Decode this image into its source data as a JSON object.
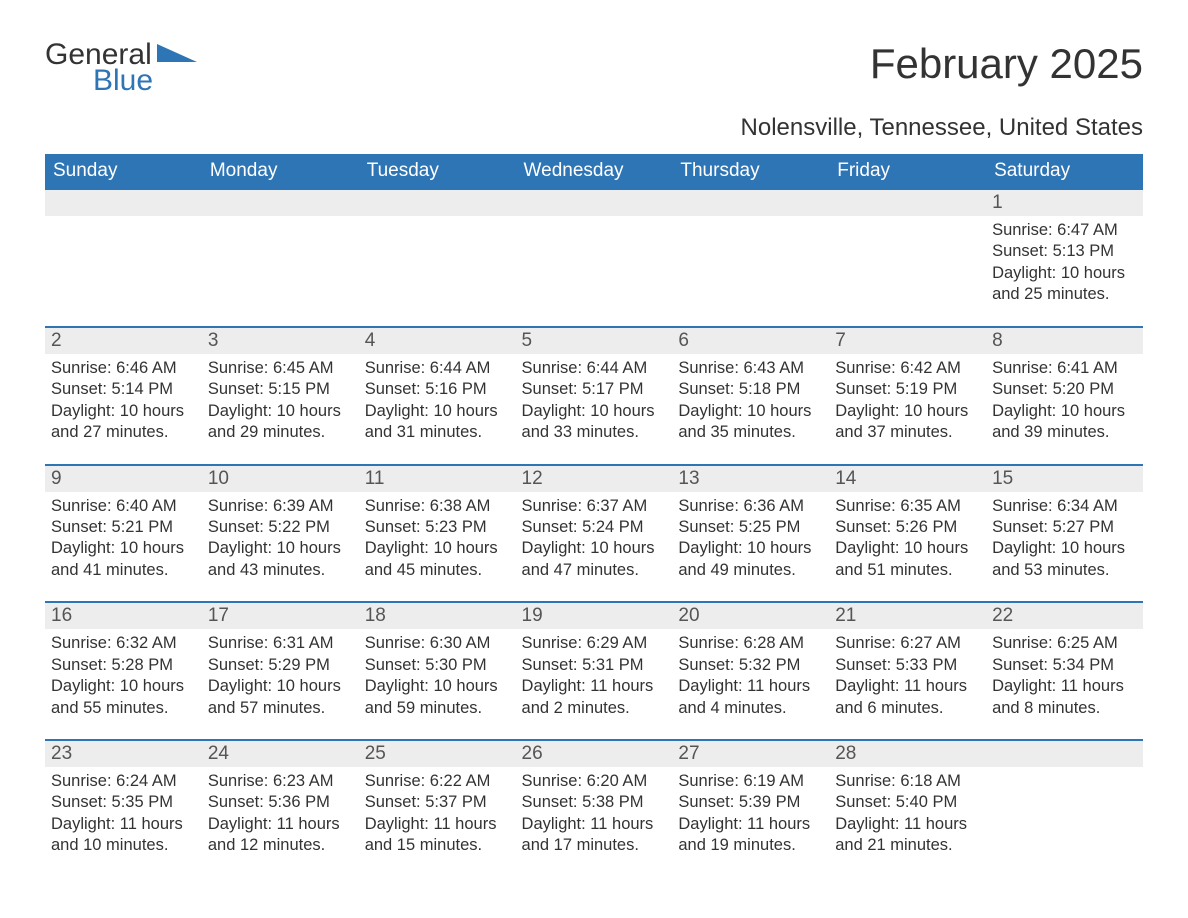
{
  "logo": {
    "word1": "General",
    "word2": "Blue"
  },
  "title": "February 2025",
  "subtitle": "Nolensville, Tennessee, United States",
  "colors": {
    "header_bg": "#2e75b6",
    "header_fg": "#ffffff",
    "row_border": "#2e75b6",
    "daynum_bg": "#ededed",
    "text": "#333333",
    "logo_blue": "#2e75b6"
  },
  "fonts": {
    "title_size": 42,
    "subtitle_size": 24,
    "header_size": 19,
    "daynum_size": 19,
    "body_size": 16.5
  },
  "day_headers": [
    "Sunday",
    "Monday",
    "Tuesday",
    "Wednesday",
    "Thursday",
    "Friday",
    "Saturday"
  ],
  "weeks": [
    [
      null,
      null,
      null,
      null,
      null,
      null,
      {
        "n": "1",
        "sunrise": "Sunrise: 6:47 AM",
        "sunset": "Sunset: 5:13 PM",
        "daylight": "Daylight: 10 hours and 25 minutes."
      }
    ],
    [
      {
        "n": "2",
        "sunrise": "Sunrise: 6:46 AM",
        "sunset": "Sunset: 5:14 PM",
        "daylight": "Daylight: 10 hours and 27 minutes."
      },
      {
        "n": "3",
        "sunrise": "Sunrise: 6:45 AM",
        "sunset": "Sunset: 5:15 PM",
        "daylight": "Daylight: 10 hours and 29 minutes."
      },
      {
        "n": "4",
        "sunrise": "Sunrise: 6:44 AM",
        "sunset": "Sunset: 5:16 PM",
        "daylight": "Daylight: 10 hours and 31 minutes."
      },
      {
        "n": "5",
        "sunrise": "Sunrise: 6:44 AM",
        "sunset": "Sunset: 5:17 PM",
        "daylight": "Daylight: 10 hours and 33 minutes."
      },
      {
        "n": "6",
        "sunrise": "Sunrise: 6:43 AM",
        "sunset": "Sunset: 5:18 PM",
        "daylight": "Daylight: 10 hours and 35 minutes."
      },
      {
        "n": "7",
        "sunrise": "Sunrise: 6:42 AM",
        "sunset": "Sunset: 5:19 PM",
        "daylight": "Daylight: 10 hours and 37 minutes."
      },
      {
        "n": "8",
        "sunrise": "Sunrise: 6:41 AM",
        "sunset": "Sunset: 5:20 PM",
        "daylight": "Daylight: 10 hours and 39 minutes."
      }
    ],
    [
      {
        "n": "9",
        "sunrise": "Sunrise: 6:40 AM",
        "sunset": "Sunset: 5:21 PM",
        "daylight": "Daylight: 10 hours and 41 minutes."
      },
      {
        "n": "10",
        "sunrise": "Sunrise: 6:39 AM",
        "sunset": "Sunset: 5:22 PM",
        "daylight": "Daylight: 10 hours and 43 minutes."
      },
      {
        "n": "11",
        "sunrise": "Sunrise: 6:38 AM",
        "sunset": "Sunset: 5:23 PM",
        "daylight": "Daylight: 10 hours and 45 minutes."
      },
      {
        "n": "12",
        "sunrise": "Sunrise: 6:37 AM",
        "sunset": "Sunset: 5:24 PM",
        "daylight": "Daylight: 10 hours and 47 minutes."
      },
      {
        "n": "13",
        "sunrise": "Sunrise: 6:36 AM",
        "sunset": "Sunset: 5:25 PM",
        "daylight": "Daylight: 10 hours and 49 minutes."
      },
      {
        "n": "14",
        "sunrise": "Sunrise: 6:35 AM",
        "sunset": "Sunset: 5:26 PM",
        "daylight": "Daylight: 10 hours and 51 minutes."
      },
      {
        "n": "15",
        "sunrise": "Sunrise: 6:34 AM",
        "sunset": "Sunset: 5:27 PM",
        "daylight": "Daylight: 10 hours and 53 minutes."
      }
    ],
    [
      {
        "n": "16",
        "sunrise": "Sunrise: 6:32 AM",
        "sunset": "Sunset: 5:28 PM",
        "daylight": "Daylight: 10 hours and 55 minutes."
      },
      {
        "n": "17",
        "sunrise": "Sunrise: 6:31 AM",
        "sunset": "Sunset: 5:29 PM",
        "daylight": "Daylight: 10 hours and 57 minutes."
      },
      {
        "n": "18",
        "sunrise": "Sunrise: 6:30 AM",
        "sunset": "Sunset: 5:30 PM",
        "daylight": "Daylight: 10 hours and 59 minutes."
      },
      {
        "n": "19",
        "sunrise": "Sunrise: 6:29 AM",
        "sunset": "Sunset: 5:31 PM",
        "daylight": "Daylight: 11 hours and 2 minutes."
      },
      {
        "n": "20",
        "sunrise": "Sunrise: 6:28 AM",
        "sunset": "Sunset: 5:32 PM",
        "daylight": "Daylight: 11 hours and 4 minutes."
      },
      {
        "n": "21",
        "sunrise": "Sunrise: 6:27 AM",
        "sunset": "Sunset: 5:33 PM",
        "daylight": "Daylight: 11 hours and 6 minutes."
      },
      {
        "n": "22",
        "sunrise": "Sunrise: 6:25 AM",
        "sunset": "Sunset: 5:34 PM",
        "daylight": "Daylight: 11 hours and 8 minutes."
      }
    ],
    [
      {
        "n": "23",
        "sunrise": "Sunrise: 6:24 AM",
        "sunset": "Sunset: 5:35 PM",
        "daylight": "Daylight: 11 hours and 10 minutes."
      },
      {
        "n": "24",
        "sunrise": "Sunrise: 6:23 AM",
        "sunset": "Sunset: 5:36 PM",
        "daylight": "Daylight: 11 hours and 12 minutes."
      },
      {
        "n": "25",
        "sunrise": "Sunrise: 6:22 AM",
        "sunset": "Sunset: 5:37 PM",
        "daylight": "Daylight: 11 hours and 15 minutes."
      },
      {
        "n": "26",
        "sunrise": "Sunrise: 6:20 AM",
        "sunset": "Sunset: 5:38 PM",
        "daylight": "Daylight: 11 hours and 17 minutes."
      },
      {
        "n": "27",
        "sunrise": "Sunrise: 6:19 AM",
        "sunset": "Sunset: 5:39 PM",
        "daylight": "Daylight: 11 hours and 19 minutes."
      },
      {
        "n": "28",
        "sunrise": "Sunrise: 6:18 AM",
        "sunset": "Sunset: 5:40 PM",
        "daylight": "Daylight: 11 hours and 21 minutes."
      },
      null
    ]
  ]
}
